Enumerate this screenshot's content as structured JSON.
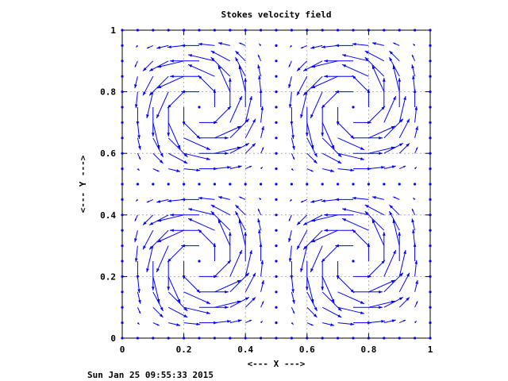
{
  "chart_data": {
    "type": "vector-field",
    "title": "Stokes velocity field",
    "xlabel": "<--- X --->",
    "ylabel": "<--- Y --->",
    "xlim": [
      0,
      1
    ],
    "ylim": [
      0,
      1
    ],
    "x_ticks": [
      "0",
      "0.2",
      "0.4",
      "0.6",
      "0.8",
      "1"
    ],
    "y_ticks": [
      "0",
      "0.2",
      "0.4",
      "0.6",
      "0.8",
      "1"
    ],
    "grid": true,
    "grid_n": 21,
    "field": "u = 2*pi*sin(2*pi*x)^2*sin(2*pi*y)*cos(2*pi*y), v = -2*pi*sin(2*pi*y)^2*sin(2*pi*x)*cos(2*pi*x)",
    "arrow_color": "#0000ff",
    "timestamp": "Sun Jan 25 09:55:33 2015"
  }
}
